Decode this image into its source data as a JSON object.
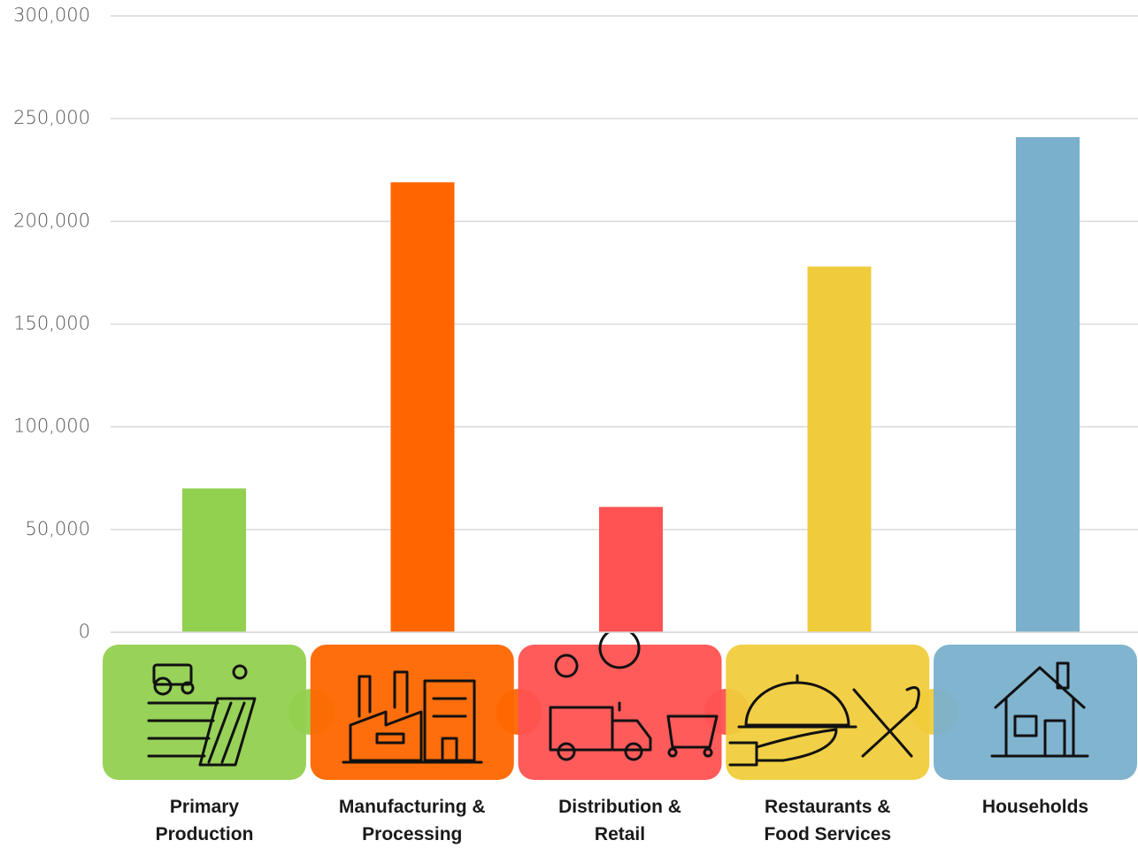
{
  "chart_data": {
    "type": "bar",
    "categories": [
      "Primary Production",
      "Manufacturing & Processing",
      "Distribution & Retail",
      "Restaurants & Food Services",
      "Households"
    ],
    "values": [
      70000,
      219000,
      61000,
      178000,
      241000
    ],
    "colors": [
      "#92d050",
      "#ff6600",
      "#ff5252",
      "#f0cc3c",
      "#7ab0cc"
    ],
    "ylim": [
      0,
      300000
    ],
    "yticks": [
      0,
      {
        "value": 50000,
        "label": "50,000"
      },
      {
        "value": 100000,
        "label": "100,000"
      },
      {
        "value": 150000,
        "label": "150,000"
      },
      {
        "value": 200000,
        "label": "200,000"
      },
      {
        "value": 250000,
        "label": "250,000"
      },
      {
        "value": 300000,
        "label": "300,000"
      }
    ],
    "grid": true
  }
}
